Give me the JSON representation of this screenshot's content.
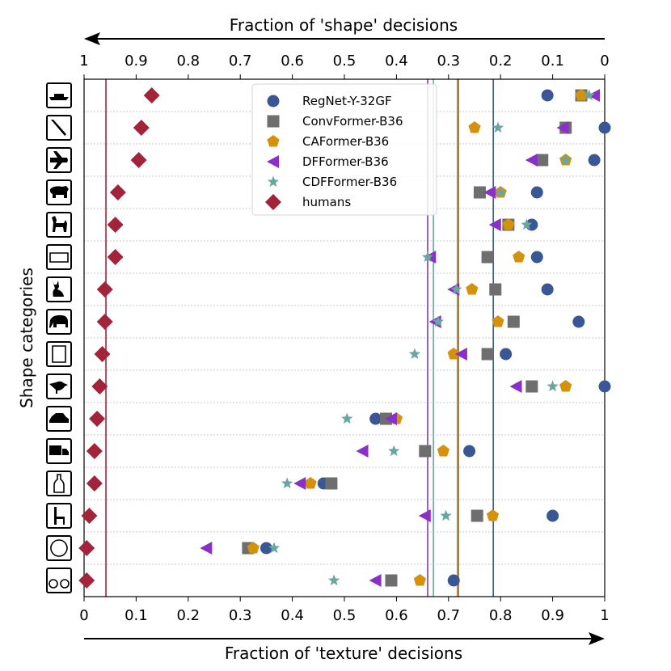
{
  "chart_data": {
    "type": "scatter",
    "title": "",
    "xlabel_bottom": "Fraction of 'texture' decisions",
    "xlabel_top": "Fraction of 'shape' decisions",
    "ylabel": "Shape categories",
    "xlim": [
      0,
      1
    ],
    "x_ticks_bottom": [
      "0",
      "0.1",
      "0.2",
      "0.3",
      "0.4",
      "0.5",
      "0.6",
      "0.7",
      "0.8",
      "0.9",
      "1"
    ],
    "x_ticks_top": [
      "1",
      "0.9",
      "0.8",
      "0.7",
      "0.6",
      "0.5",
      "0.4",
      "0.3",
      "0.2",
      "0.1",
      "0"
    ],
    "categories": [
      "boat",
      "knife",
      "airplane",
      "bear",
      "dog",
      "keyboard",
      "cat",
      "elephant",
      "oven",
      "bird",
      "car",
      "truck",
      "bottle",
      "chair",
      "clock",
      "bicycle"
    ],
    "legend_position": "top-center",
    "series": [
      {
        "name": "RegNet-Y-32GF",
        "marker": "circle",
        "color": "#3a5795",
        "values": [
          0.89,
          1.0,
          0.98,
          0.87,
          0.86,
          0.87,
          0.89,
          0.95,
          0.81,
          1.0,
          0.56,
          0.74,
          0.46,
          0.9,
          0.35,
          0.71
        ],
        "mean": 0.786
      },
      {
        "name": "ConvFormer-B36",
        "marker": "square",
        "color": "#6e6e6e",
        "values": [
          0.955,
          0.925,
          0.88,
          0.76,
          0.815,
          0.775,
          0.79,
          0.825,
          0.775,
          0.86,
          0.58,
          0.655,
          0.475,
          0.755,
          0.315,
          0.59
        ],
        "mean": 0.719
      },
      {
        "name": "CAFormer-B36",
        "marker": "pentagon",
        "color": "#d4910a",
        "values": [
          0.955,
          0.75,
          0.925,
          0.8,
          0.815,
          0.835,
          0.745,
          0.795,
          0.71,
          0.925,
          0.6,
          0.69,
          0.435,
          0.785,
          0.325,
          0.645
        ],
        "mean": 0.717
      },
      {
        "name": "DFFormer-B36",
        "marker": "triangle-left",
        "color": "#8b2fc9",
        "values": [
          0.98,
          0.92,
          0.86,
          0.78,
          0.79,
          0.665,
          0.71,
          0.675,
          0.725,
          0.83,
          0.59,
          0.535,
          0.415,
          0.655,
          0.235,
          0.56
        ],
        "mean": 0.66
      },
      {
        "name": "CDFFormer-B36",
        "marker": "star",
        "color": "#6aa6a0",
        "values": [
          0.97,
          0.795,
          0.925,
          0.8,
          0.85,
          0.66,
          0.715,
          0.68,
          0.635,
          0.9,
          0.505,
          0.595,
          0.39,
          0.695,
          0.365,
          0.48
        ],
        "mean": 0.671
      },
      {
        "name": "humans",
        "marker": "diamond",
        "color": "#a3233a",
        "values": [
          0.13,
          0.11,
          0.105,
          0.065,
          0.06,
          0.06,
          0.04,
          0.04,
          0.035,
          0.03,
          0.025,
          0.02,
          0.02,
          0.01,
          0.005,
          0.005
        ],
        "mean": 0.042
      }
    ]
  }
}
